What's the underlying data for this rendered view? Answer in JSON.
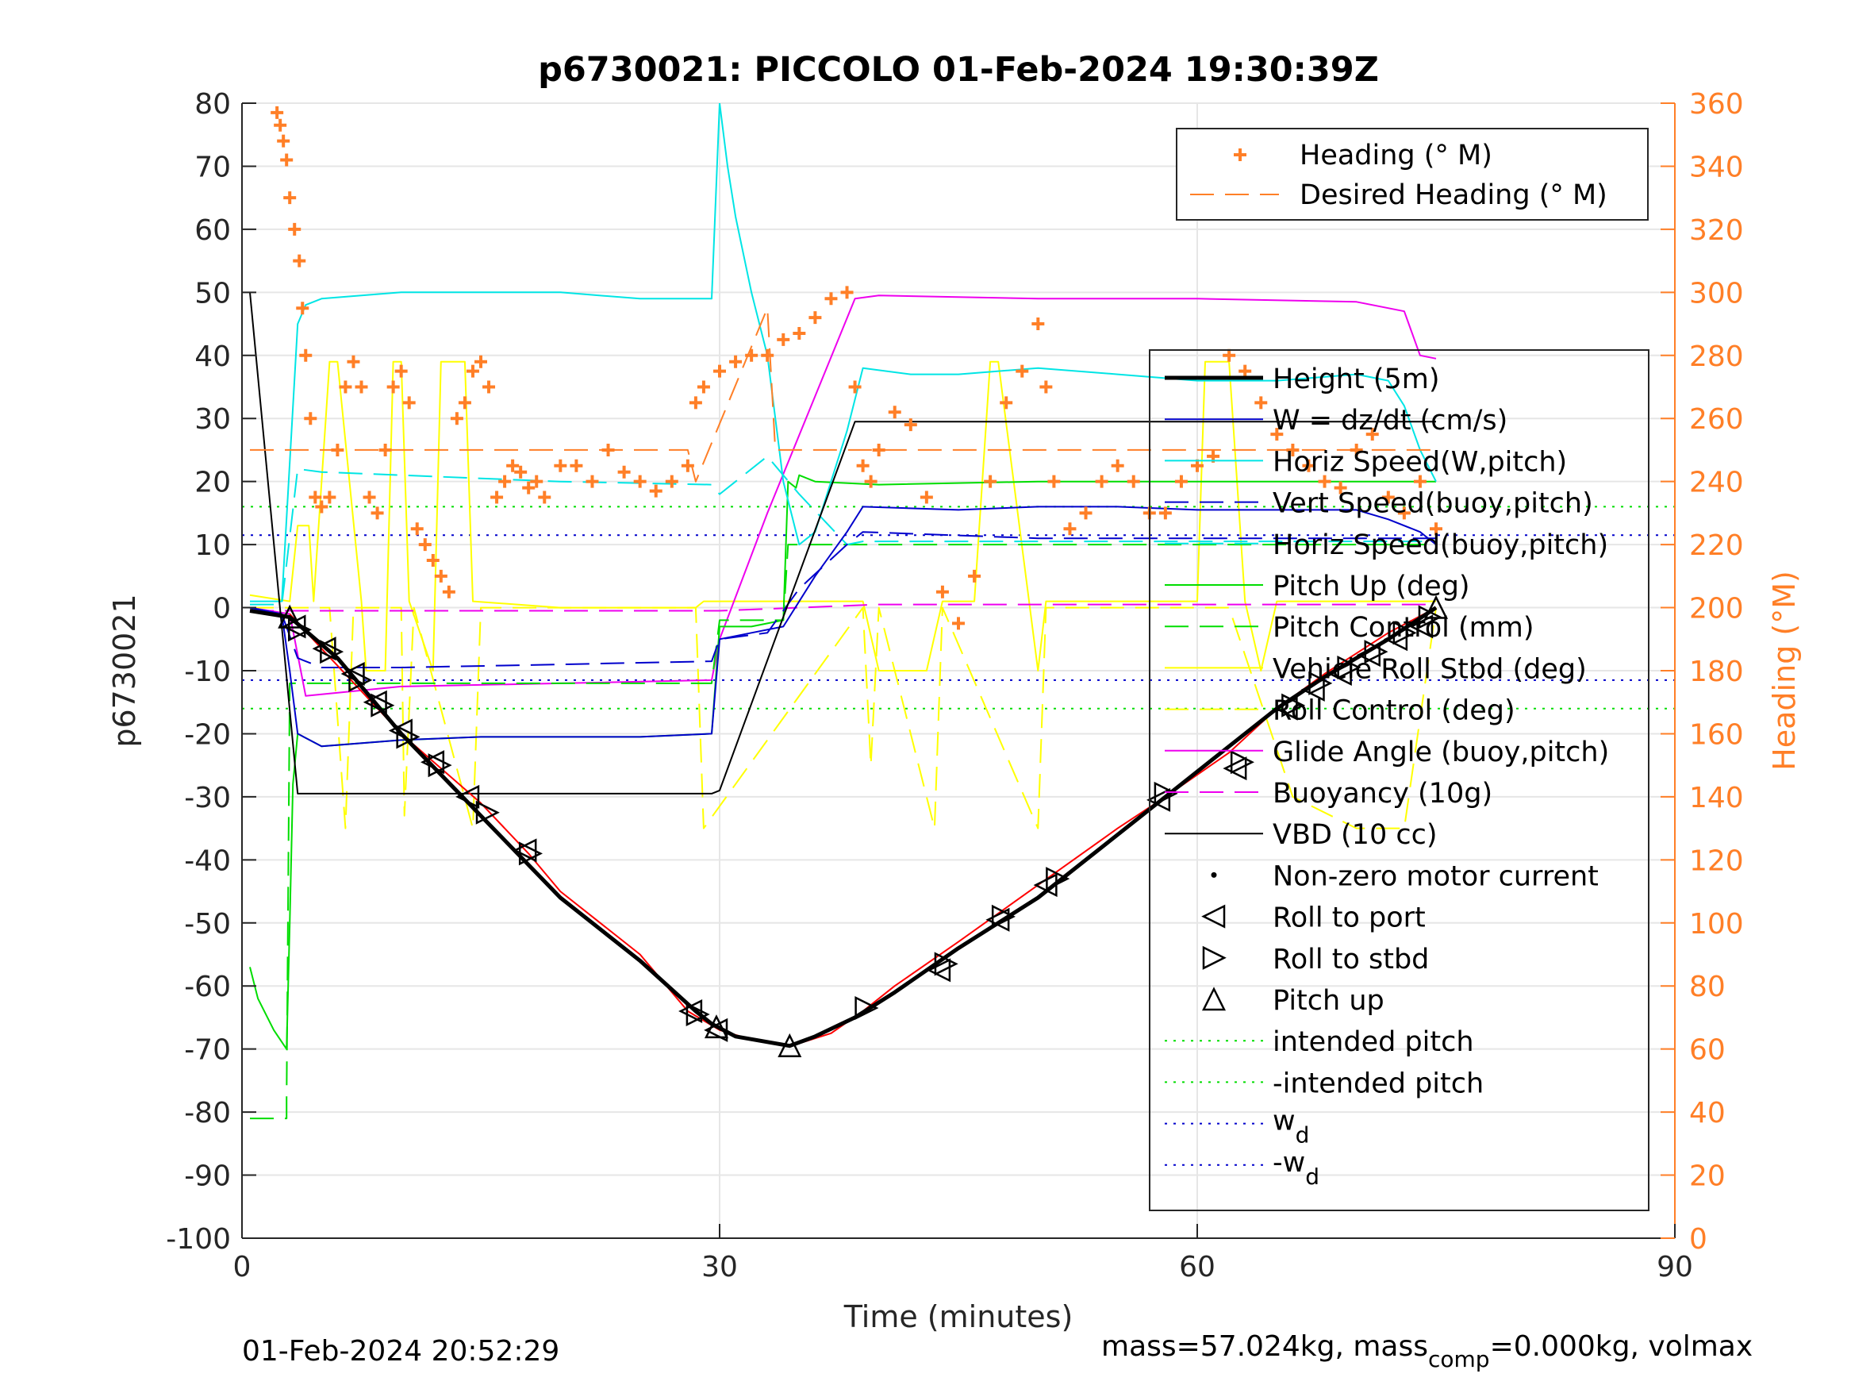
{
  "chart_data": {
    "type": "line",
    "title": "p6730021: PICCOLO 01-Feb-2024 19:30:39Z",
    "xlabel": "Time (minutes)",
    "ylabel": "p6730021",
    "y2label": "Heading (°M)",
    "xlim": [
      0,
      90
    ],
    "ylim": [
      -100,
      80
    ],
    "y2lim": [
      0,
      360
    ],
    "xticks": [
      0,
      30,
      60,
      90
    ],
    "yticks": [
      -100,
      -90,
      -80,
      -70,
      -60,
      -50,
      -40,
      -30,
      -20,
      -10,
      0,
      10,
      20,
      30,
      40,
      50,
      60,
      70,
      80
    ],
    "y2ticks": [
      0,
      20,
      40,
      60,
      80,
      100,
      120,
      140,
      160,
      180,
      200,
      220,
      240,
      260,
      280,
      300,
      320,
      340,
      360
    ],
    "grid": true,
    "footer_left": "01-Feb-2024 20:52:29",
    "footer_right": {
      "a": "mass=57.024kg, mass",
      "sub": "comp",
      "b": "=0.000kg, volmax"
    },
    "colors": {
      "heading": "#FF7F27",
      "depth": "#FF0000",
      "w": "#0000CC",
      "horiz": "#00E5E5",
      "pitch": "#00DD00",
      "roll": "#FFFF00",
      "glide": "#EE00EE",
      "vbd": "#000000"
    },
    "legend_heading": [
      "Heading (° M)",
      "Desired Heading (° M)"
    ],
    "legend_main": [
      "Height (5m)",
      "W = dz/dt (cm/s)",
      "Horiz Speed(W,pitch)",
      "Vert Speed(buoy,pitch)",
      "Horiz Speed(buoy,pitch)",
      "Pitch Up (deg)",
      "Pitch Control (mm)",
      "Vehicle Roll Stbd (deg)",
      "Roll Control (deg)",
      "Glide Angle (buoy,pitch)",
      "Buoyancy (10g)",
      "VBD (10 cc)",
      "Non-zero motor current",
      "Roll to port",
      "Roll to stbd",
      "Pitch up",
      "intended pitch",
      "-intended pitch"
    ],
    "legend_wd": {
      "label": "w",
      "sub": "d"
    },
    "legend_neg_wd": {
      "label": "-w",
      "sub": "d"
    },
    "series": [
      {
        "name": "Height (5m)",
        "x": [
          0.5,
          3,
          6,
          10,
          15,
          20,
          25,
          28.5,
          29.5,
          31,
          34.4,
          36,
          38.5,
          41,
          45,
          50,
          55,
          58,
          62,
          65,
          68,
          72,
          75
        ],
        "y": [
          -0.5,
          -1.5,
          -8,
          -20,
          -33,
          -46,
          -56,
          -64,
          -66,
          -68,
          -69.5,
          -68,
          -65,
          -61,
          -54,
          -46,
          -36,
          -30,
          -22,
          -16,
          -11,
          -5,
          0
        ]
      },
      {
        "name": "W = dz/dt (cm/s)",
        "x": [
          0.5,
          2.5,
          3,
          3.5,
          5,
          10,
          15,
          20,
          25,
          29.5,
          30,
          32,
          34,
          36,
          38,
          39,
          45,
          50,
          55,
          60,
          65,
          70,
          72,
          74,
          75
        ],
        "y": [
          0,
          -1,
          -10,
          -20,
          -22,
          -21,
          -20.5,
          -20.5,
          -20.5,
          -20,
          -5,
          -4,
          -3,
          5,
          12,
          16,
          15.5,
          16,
          16,
          15.5,
          15.5,
          15.5,
          14,
          12,
          10
        ]
      },
      {
        "name": "Horiz Speed(W,pitch)",
        "x": [
          0.5,
          2.5,
          3.5,
          4,
          5,
          10,
          15,
          20,
          25,
          29.5,
          30,
          30.5,
          31,
          32,
          33,
          34,
          35,
          36,
          38,
          39,
          42,
          45,
          50,
          55,
          60,
          65,
          70,
          72,
          73,
          74,
          75
        ],
        "y": [
          1,
          1,
          45,
          48,
          49,
          50,
          50,
          50,
          49,
          49,
          80,
          70,
          62,
          50,
          40,
          20,
          10,
          12,
          28,
          38,
          37,
          37,
          38,
          37,
          36,
          36,
          37,
          36,
          32,
          25,
          20
        ]
      },
      {
        "name": "Vert Speed(buoy,pitch)",
        "x": [
          0.5,
          2.5,
          3.5,
          5,
          10,
          20,
          29.5,
          30,
          33,
          35,
          38,
          39,
          50,
          60,
          70,
          75
        ],
        "y": [
          0,
          -1,
          -8,
          -9.5,
          -9.5,
          -9,
          -8.5,
          -5,
          -4,
          3,
          10,
          12,
          11,
          11,
          11,
          11
        ]
      },
      {
        "name": "Horiz Speed(buoy,pitch)",
        "x": [
          0.5,
          2.5,
          3.5,
          5,
          10,
          20,
          29.5,
          30,
          31,
          33,
          35,
          38,
          39,
          50,
          60,
          70,
          75
        ],
        "y": [
          0.5,
          0.5,
          22,
          21.5,
          21,
          20,
          19.5,
          18,
          20,
          24,
          18,
          10,
          10.5,
          10.5,
          10.5,
          10.5,
          10.5
        ]
      },
      {
        "name": "Pitch Up (deg)",
        "x": [
          0.5,
          1,
          2,
          2.8,
          3,
          3.2,
          3.5,
          5,
          10,
          15,
          20,
          25,
          29.5,
          30,
          32,
          34,
          34.3,
          34.8,
          35,
          36,
          40,
          50,
          60,
          70,
          75
        ],
        "y": [
          -57,
          -62,
          -67,
          -70,
          -50,
          -28,
          -20,
          -22,
          -21,
          -20.5,
          -20.5,
          -20.5,
          -20,
          -3,
          -3,
          -2,
          20,
          19,
          21,
          20,
          19.5,
          20,
          20,
          20,
          20
        ]
      },
      {
        "name": "Pitch Control (mm)",
        "x": [
          0.5,
          2.8,
          2.8,
          3,
          3.5,
          5,
          10,
          20,
          29.5,
          30,
          34,
          34.3,
          36,
          50,
          60,
          75
        ],
        "y": [
          -81,
          -81,
          -78,
          -12,
          -12,
          -12,
          -12,
          -12,
          -12,
          -2,
          -2,
          10,
          10,
          10,
          10,
          10
        ]
      },
      {
        "name": "Vehicle Roll Stbd (deg)",
        "x": [
          0.5,
          3,
          3.5,
          4.2,
          4.5,
          5.5,
          6,
          7.5,
          7.8,
          9,
          9.5,
          10,
          10.5,
          12,
          12.5,
          14,
          14.5,
          20,
          28.5,
          29,
          30,
          35,
          39,
          40,
          43,
          44,
          46,
          47,
          47.5,
          50,
          50.5,
          55,
          60,
          60.5,
          62,
          63,
          64,
          65,
          70,
          75
        ],
        "y": [
          2,
          1,
          13,
          13,
          1,
          39,
          39,
          1,
          -10,
          -10,
          39,
          39,
          1,
          -10,
          39,
          39,
          1,
          0,
          0,
          1,
          1,
          1,
          1,
          -10,
          -10,
          1,
          1,
          39,
          39,
          -10,
          1,
          1,
          1,
          39,
          39,
          1,
          -10,
          1,
          1,
          1
        ]
      },
      {
        "name": "Roll Control (deg)",
        "x": [
          0.5,
          5.5,
          6.5,
          7,
          10,
          10.2,
          10.8,
          14.5,
          15,
          28.5,
          29,
          39,
          39.5,
          40,
          43.5,
          44,
          50,
          50.5,
          60,
          62,
          66,
          70,
          73,
          75
        ],
        "y": [
          0,
          0,
          -35,
          0,
          0,
          -33,
          0,
          -35,
          0,
          0,
          -35,
          0,
          -25,
          0,
          -35,
          0,
          -35,
          0,
          0,
          0,
          -30,
          -35,
          -35,
          0
        ]
      },
      {
        "name": "Glide Angle (buoy,pitch)",
        "x": [
          0.5,
          3,
          4,
          10,
          20,
          29.5,
          30,
          33,
          38.5,
          40,
          50,
          60,
          70,
          73,
          74,
          75
        ],
        "y": [
          0,
          -1,
          -14,
          -12.5,
          -12,
          -11.5,
          -5,
          15,
          49,
          49.5,
          49,
          49,
          48.5,
          47,
          40,
          39.5
        ]
      },
      {
        "name": "Buoyancy (10g)",
        "x": [
          0.5,
          30,
          40,
          75
        ],
        "y": [
          -0.5,
          -0.5,
          0.5,
          0.5
        ]
      },
      {
        "name": "VBD (10 cc)",
        "x": [
          0.5,
          3.5,
          29.5,
          30,
          38.5,
          40,
          75
        ],
        "y": [
          50,
          -29.5,
          -29.5,
          -29,
          29.5,
          29.5,
          29.5
        ]
      },
      {
        "name": "Heading (° M)",
        "x": [
          2.2,
          2.4,
          2.6,
          2.8,
          3,
          3.3,
          3.6,
          3.8,
          4,
          4.3,
          4.6,
          5,
          5.5,
          6,
          6.5,
          7,
          7.5,
          8,
          8.5,
          9,
          9.5,
          10,
          10.5,
          11,
          11.5,
          12,
          12.5,
          13,
          13.5,
          14,
          14.5,
          15,
          15.5,
          16,
          16.5,
          17,
          17.5,
          18,
          18.5,
          19,
          20,
          21,
          22,
          23,
          24,
          25,
          26,
          27,
          28,
          28.5,
          29,
          30,
          31,
          32,
          33,
          34,
          35,
          36,
          37,
          38,
          38.5,
          39,
          39.5,
          40,
          41,
          42,
          43,
          44,
          45,
          46,
          47,
          48,
          49,
          50,
          50.5,
          51,
          52,
          53,
          54,
          55,
          56,
          57,
          58,
          59,
          60,
          61,
          62,
          63,
          64,
          65,
          66,
          67,
          68,
          69,
          70,
          71,
          72,
          73,
          74,
          75
        ],
        "y": [
          357,
          353,
          348,
          342,
          330,
          320,
          310,
          295,
          280,
          260,
          235,
          232,
          235,
          250,
          270,
          278,
          270,
          235,
          230,
          250,
          270,
          275,
          265,
          225,
          220,
          215,
          210,
          205,
          260,
          265,
          275,
          278,
          270,
          235,
          240,
          245,
          243,
          238,
          240,
          235,
          245,
          245,
          240,
          250,
          243,
          240,
          237,
          240,
          245,
          265,
          270,
          275,
          278,
          280,
          280,
          285,
          287,
          292,
          298,
          300,
          270,
          245,
          240,
          250,
          262,
          258,
          235,
          205,
          195,
          210,
          240,
          265,
          275,
          290,
          270,
          240,
          225,
          230,
          240,
          245,
          240,
          230,
          230,
          240,
          245,
          248,
          280,
          275,
          265,
          255,
          250,
          245,
          240,
          238,
          250,
          255,
          235,
          230,
          240,
          225
        ]
      },
      {
        "name": "Desired Heading (° M)",
        "x": [
          0.5,
          28,
          28.5,
          33,
          33.5,
          75
        ],
        "y": [
          250,
          250,
          240,
          295,
          250,
          250
        ]
      },
      {
        "name": "Depth profile",
        "x": [
          3,
          5,
          10,
          15,
          18,
          20,
          25,
          28,
          30,
          32,
          34.5,
          37,
          39,
          41,
          45,
          50,
          55,
          58,
          62,
          65,
          68,
          72,
          75
        ],
        "y": [
          -1,
          -6.5,
          -20,
          -31,
          -39,
          -45,
          -55,
          -64,
          -67,
          -68.5,
          -69.5,
          -67.5,
          -64,
          -60,
          -53,
          -44,
          -35,
          -30,
          -23,
          -16,
          -10.5,
          -4,
          0
        ]
      },
      {
        "name": "Roll to port",
        "x": [
          3.3,
          5.2,
          7,
          8.4,
          10,
          12,
          14.2,
          17.8,
          28.2,
          29.8,
          43.8,
          47.5,
          50.5,
          57.6,
          62.4,
          65.6,
          67.3,
          69,
          70.8,
          72.5,
          74.1
        ],
        "y": [
          -3,
          -6.5,
          -10.5,
          -15,
          -19.5,
          -24.5,
          -30,
          -38.5,
          -64,
          -67,
          -57.5,
          -49.5,
          -44,
          -30.5,
          -25.5,
          -16,
          -13,
          -10.5,
          -7.5,
          -5,
          -3
        ]
      },
      {
        "name": "Roll to stbd",
        "x": [
          3.6,
          5.6,
          7.4,
          8.8,
          10.4,
          12.4,
          15.4,
          18.1,
          28.6,
          39.2,
          44.2,
          47.8,
          51.2,
          58,
          62.8,
          66,
          67.7,
          69.5,
          71.2,
          73,
          74.6
        ],
        "y": [
          -3.5,
          -7,
          -11.5,
          -15.5,
          -20.5,
          -25,
          -32.5,
          -39,
          -64.5,
          -63.5,
          -56.5,
          -49,
          -43,
          -29.5,
          -24.5,
          -15.5,
          -12,
          -9.5,
          -7,
          -4,
          -1.5
        ]
      },
      {
        "name": "Pitch up",
        "x": [
          3,
          29.8,
          34.4,
          75
        ],
        "y": [
          -1.5,
          -66.5,
          -69.5,
          0
        ]
      },
      {
        "name": "intended pitch",
        "x": [
          0,
          90
        ],
        "y": [
          16,
          16
        ]
      },
      {
        "name": "-intended pitch",
        "x": [
          0,
          90
        ],
        "y": [
          -16,
          -16
        ]
      },
      {
        "name": "w_d",
        "x": [
          0,
          90
        ],
        "y": [
          11.5,
          11.5
        ]
      },
      {
        "name": "-w_d",
        "x": [
          0,
          90
        ],
        "y": [
          -11.5,
          -11.5
        ]
      }
    ]
  }
}
